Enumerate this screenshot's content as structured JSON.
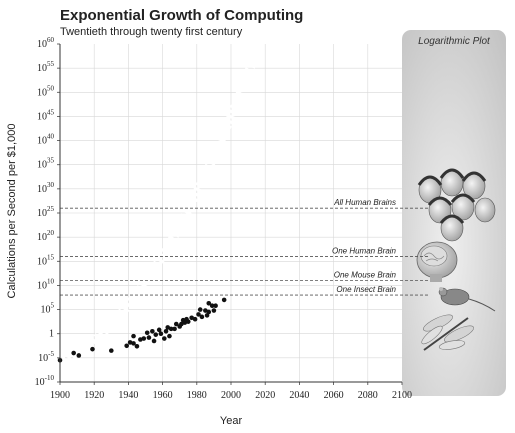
{
  "chart_data": {
    "type": "scatter",
    "title": "Exponential Growth of Computing",
    "subtitle": "Twentieth through twenty first century",
    "xlabel": "Year",
    "ylabel": "Calculations per Second per $1,000",
    "xlim": [
      1900,
      2100
    ],
    "ylim_log10": [
      -10,
      60
    ],
    "y_scale": "log",
    "x_ticks": [
      1900,
      1920,
      1940,
      1960,
      1980,
      2000,
      2020,
      2040,
      2060,
      2080,
      2100
    ],
    "y_ticks": [
      {
        "base": "10",
        "exp": "60",
        "value_log10": 60
      },
      {
        "base": "10",
        "exp": "55",
        "value_log10": 55
      },
      {
        "base": "10",
        "exp": "50",
        "value_log10": 50
      },
      {
        "base": "10",
        "exp": "45",
        "value_log10": 45
      },
      {
        "base": "10",
        "exp": "40",
        "value_log10": 40
      },
      {
        "base": "10",
        "exp": "35",
        "value_log10": 35
      },
      {
        "base": "10",
        "exp": "30",
        "value_log10": 30
      },
      {
        "base": "10",
        "exp": "25",
        "value_log10": 25
      },
      {
        "base": "10",
        "exp": "20",
        "value_log10": 20
      },
      {
        "base": "10",
        "exp": "15",
        "value_log10": 15
      },
      {
        "base": "10",
        "exp": "10",
        "value_log10": 10
      },
      {
        "base": "10",
        "exp": "5",
        "value_log10": 5
      },
      {
        "base": "1",
        "exp": "",
        "value_log10": 0
      },
      {
        "base": "10",
        "exp": "-5",
        "value_log10": -5
      },
      {
        "base": "10",
        "exp": "-10",
        "value_log10": -10
      }
    ],
    "grid": true,
    "panel_label": "Logarithmic Plot",
    "reference_lines": [
      {
        "label": "All Human Brains",
        "value_log10": 26
      },
      {
        "label": "One Human Brain",
        "value_log10": 16
      },
      {
        "label": "One Mouse Brain",
        "value_log10": 11
      },
      {
        "label": "One Insect Brain",
        "value_log10": 8
      }
    ],
    "series": [
      {
        "points": [
          {
            "x": 1900,
            "y_log10": -5.5
          },
          {
            "x": 1908,
            "y_log10": -4.0
          },
          {
            "x": 1911,
            "y_log10": -4.5
          },
          {
            "x": 1919,
            "y_log10": -3.2
          },
          {
            "x": 1930,
            "y_log10": -3.5
          },
          {
            "x": 1939,
            "y_log10": -2.5
          },
          {
            "x": 1941,
            "y_log10": -1.8
          },
          {
            "x": 1943,
            "y_log10": -2.0
          },
          {
            "x": 1943,
            "y_log10": -0.5
          },
          {
            "x": 1945,
            "y_log10": -2.6
          },
          {
            "x": 1947,
            "y_log10": -1.2
          },
          {
            "x": 1949,
            "y_log10": -1.0
          },
          {
            "x": 1951,
            "y_log10": 0.2
          },
          {
            "x": 1952,
            "y_log10": -0.8
          },
          {
            "x": 1954,
            "y_log10": 0.5
          },
          {
            "x": 1955,
            "y_log10": -1.5
          },
          {
            "x": 1956,
            "y_log10": -0.2
          },
          {
            "x": 1958,
            "y_log10": 0.8
          },
          {
            "x": 1959,
            "y_log10": 0.0
          },
          {
            "x": 1961,
            "y_log10": -1.0
          },
          {
            "x": 1962,
            "y_log10": 0.5
          },
          {
            "x": 1963,
            "y_log10": 1.3
          },
          {
            "x": 1964,
            "y_log10": -0.5
          },
          {
            "x": 1965,
            "y_log10": 1.0
          },
          {
            "x": 1967,
            "y_log10": 1.0
          },
          {
            "x": 1968,
            "y_log10": 2.0
          },
          {
            "x": 1970,
            "y_log10": 1.5
          },
          {
            "x": 1971,
            "y_log10": 2.0
          },
          {
            "x": 1972,
            "y_log10": 2.8
          },
          {
            "x": 1973,
            "y_log10": 2.3
          },
          {
            "x": 1974,
            "y_log10": 3.0
          },
          {
            "x": 1975,
            "y_log10": 2.5
          },
          {
            "x": 1977,
            "y_log10": 3.3
          },
          {
            "x": 1979,
            "y_log10": 3.0
          },
          {
            "x": 1981,
            "y_log10": 4.0
          },
          {
            "x": 1982,
            "y_log10": 5.0
          },
          {
            "x": 1983,
            "y_log10": 3.5
          },
          {
            "x": 1985,
            "y_log10": 4.8
          },
          {
            "x": 1986,
            "y_log10": 3.8
          },
          {
            "x": 1987,
            "y_log10": 4.5
          },
          {
            "x": 1987,
            "y_log10": 6.3
          },
          {
            "x": 1989,
            "y_log10": 5.8
          },
          {
            "x": 1990,
            "y_log10": 4.8
          },
          {
            "x": 1991,
            "y_log10": 5.8
          },
          {
            "x": 1996,
            "y_log10": 7.0
          }
        ]
      }
    ],
    "trend": {
      "anchor_x": 1900,
      "anchor_y_log10": -6,
      "growth_per_decade": 0.35
    }
  }
}
